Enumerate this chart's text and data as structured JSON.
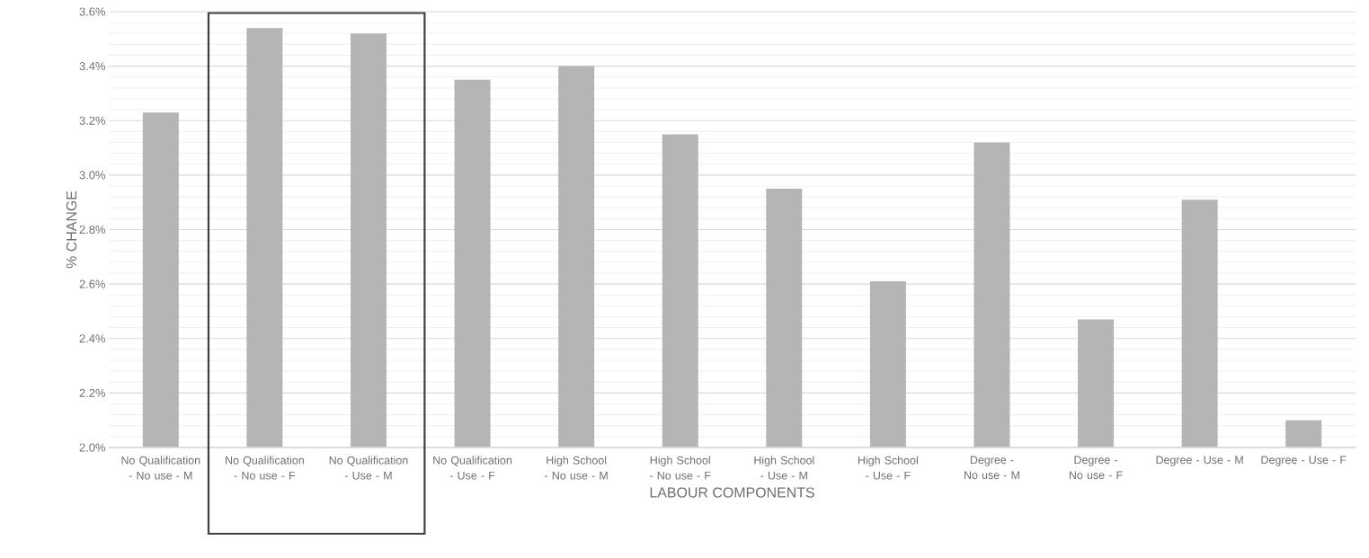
{
  "chart_data": {
    "type": "bar",
    "xlabel": "LABOUR COMPONENTS",
    "ylabel": "% CHANGE",
    "categories": [
      "No Qualification - No use - M",
      "No Qualification - No use - F",
      "No Qualification - Use - M",
      "No Qualification - Use - F",
      "High School - No use - M",
      "High School - No use - F",
      "High School - Use - M",
      "High School - Use - F",
      "Degree - No use  - M",
      "Degree - No use - F",
      "Degree - Use - M",
      "Degree - Use - F"
    ],
    "values": [
      3.23,
      3.54,
      3.52,
      3.35,
      3.4,
      3.15,
      2.95,
      2.61,
      3.12,
      2.47,
      2.91,
      2.1
    ],
    "color": "#b4b5b7",
    "ylim": [
      2.0,
      3.6
    ],
    "yticks": [
      {
        "value": 2.0,
        "label": "2.0%"
      },
      {
        "value": 2.2,
        "label": "2.2%"
      },
      {
        "value": 2.4,
        "label": "2.4%"
      },
      {
        "value": 2.6,
        "label": "2.6%"
      },
      {
        "value": 2.8,
        "label": "2.8%"
      },
      {
        "value": 3.0,
        "label": "3.0%"
      },
      {
        "value": 3.2,
        "label": "3.2%"
      },
      {
        "value": 3.4,
        "label": "3.4%"
      },
      {
        "value": 3.6,
        "label": "3.6%"
      }
    ],
    "grid": true
  }
}
